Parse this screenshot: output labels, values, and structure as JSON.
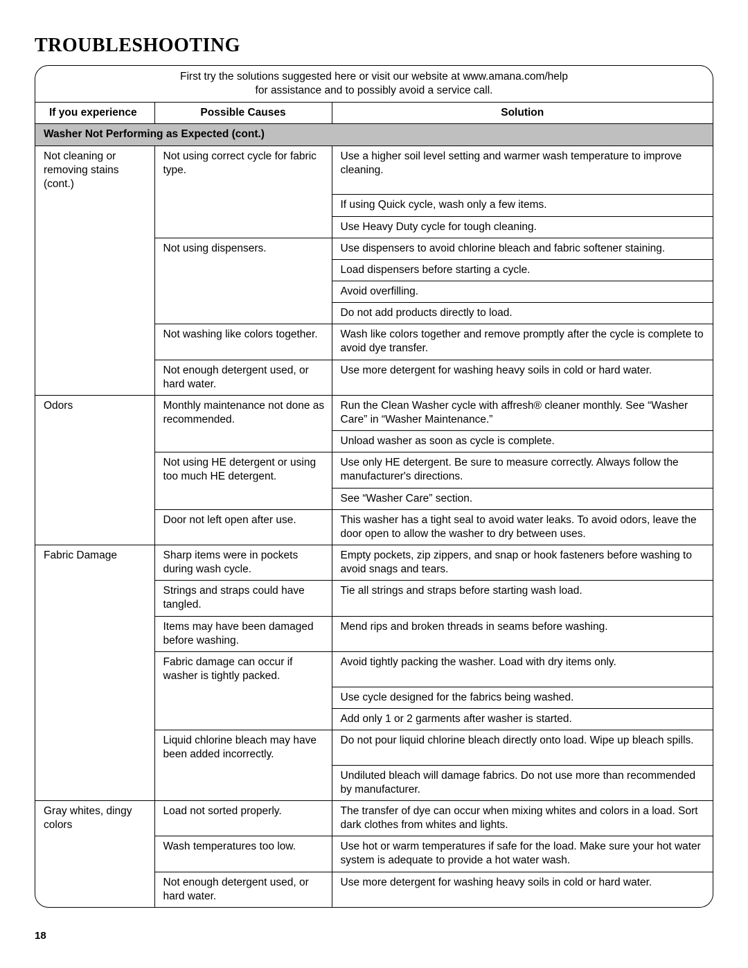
{
  "title": "TROUBLESHOOTING",
  "intro_line1": "First try the solutions suggested here or visit our website at www.amana.com/help",
  "intro_line2": "for assistance and to possibly avoid a service call.",
  "headers": {
    "experience": "If you experience",
    "causes": "Possible Causes",
    "solution": "Solution"
  },
  "section_heading": "Washer Not Performing as Expected (cont.)",
  "page_number": "18",
  "problems": {
    "not_cleaning": "Not cleaning or removing stains (cont.)",
    "odors": "Odors",
    "fabric_damage": "Fabric Damage",
    "gray_whites": "Gray whites, dingy colors"
  },
  "causes": {
    "c1": "Not using correct cycle for fabric type.",
    "c2": "Not using dispensers.",
    "c3": "Not washing like colors together.",
    "c4": "Not enough detergent used, or hard water.",
    "c5": "Monthly maintenance not done as recommended.",
    "c6": "Not using HE detergent or using too much HE detergent.",
    "c7": "Door not left open after use.",
    "c8": "Sharp items were in pockets during wash cycle.",
    "c9": "Strings and straps could have tangled.",
    "c10": "Items may have been damaged before washing.",
    "c11": "Fabric damage can occur if washer is tightly packed.",
    "c12": "Liquid chlorine bleach may have been added incorrectly.",
    "c13": "Load not sorted properly.",
    "c14": "Wash temperatures too low.",
    "c15": "Not enough detergent used, or hard water."
  },
  "solutions": {
    "s1": "Use a higher soil level setting and warmer wash temperature to improve cleaning.",
    "s2": "If using Quick cycle, wash only a few items.",
    "s3": "Use Heavy Duty cycle for tough cleaning.",
    "s4": "Use dispensers to avoid chlorine bleach and fabric softener staining.",
    "s5": "Load dispensers before starting a cycle.",
    "s6": "Avoid overfilling.",
    "s7": "Do not add products directly to load.",
    "s8": "Wash like colors together and remove promptly after the cycle is complete to avoid dye transfer.",
    "s9": "Use more detergent for washing heavy soils in cold or hard water.",
    "s10": "Run the Clean Washer cycle with affresh® cleaner monthly. See “Washer Care” in “Washer Maintenance.”",
    "s11": "Unload washer as soon as cycle is complete.",
    "s12": "Use only HE detergent. Be sure to measure correctly. Always follow the manufacturer's directions.",
    "s13": "See “Washer Care” section.",
    "s14": "This washer has a tight seal to avoid water leaks. To avoid odors, leave the door open to allow the washer to dry between uses.",
    "s15": "Empty pockets, zip zippers, and snap or hook fasteners before washing to avoid snags and tears.",
    "s16": "Tie all strings and straps before starting wash load.",
    "s17": "Mend rips and broken threads in seams before washing.",
    "s18": "Avoid tightly packing the washer. Load with dry items only.",
    "s19": "Use cycle designed for the fabrics being washed.",
    "s20": "Add only 1 or 2 garments after washer is started.",
    "s21": "Do not pour liquid chlorine bleach directly onto load. Wipe up bleach spills.",
    "s22": "Undiluted bleach will damage fabrics. Do not use more than recommended by manufacturer.",
    "s23": "The transfer of dye can occur when mixing whites and colors in a load. Sort dark clothes from whites and lights.",
    "s24": "Use hot or warm temperatures if safe for the load. Make sure your hot water system is adequate to provide a hot water wash.",
    "s25": "Use more detergent for washing heavy soils in cold or hard water."
  },
  "colors": {
    "section_bg": "#bfbfbf",
    "border": "#000000",
    "text": "#000000",
    "background": "#ffffff"
  }
}
